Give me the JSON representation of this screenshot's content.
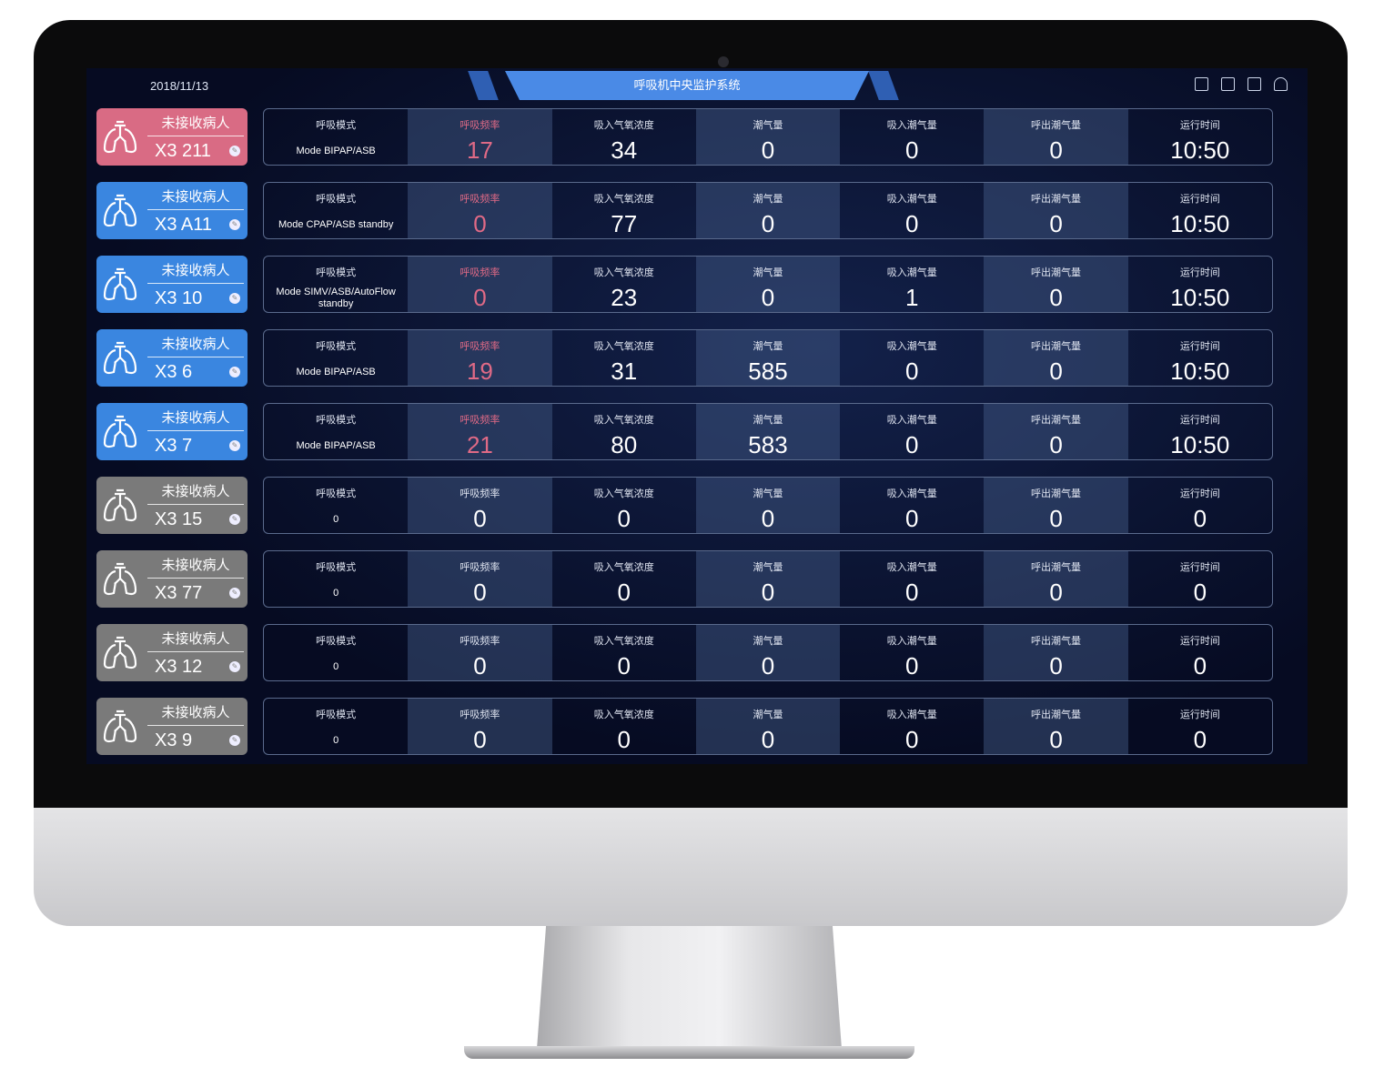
{
  "header": {
    "date": "2018/11/13",
    "title": "呼吸机中央监护系统",
    "icons": [
      "list-icon",
      "edit-icon",
      "layout-icon",
      "user-icon"
    ]
  },
  "colors": {
    "pink": "#d96b84",
    "blue": "#3a86e0",
    "gray": "#7a7a7a",
    "alert": "#e06a86"
  },
  "labels": [
    "呼吸模式",
    "呼吸频率",
    "吸入气氧浓度",
    "潮气量",
    "吸入潮气量",
    "呼出潮气量",
    "运行时间"
  ],
  "rows": [
    {
      "status": "未接收病人",
      "bed": "X3 211",
      "color": "pink",
      "alert": true,
      "mode": "Mode BIPAP/ASB",
      "values": [
        "17",
        "34",
        "0",
        "0",
        "0",
        "10:50"
      ]
    },
    {
      "status": "未接收病人",
      "bed": "X3 A11",
      "color": "blue",
      "alert": true,
      "mode": "Mode CPAP/ASB standby",
      "values": [
        "0",
        "77",
        "0",
        "0",
        "0",
        "10:50"
      ]
    },
    {
      "status": "未接收病人",
      "bed": "X3 10",
      "color": "blue",
      "alert": true,
      "mode": "Mode SIMV/ASB/AutoFlow standby",
      "values": [
        "0",
        "23",
        "0",
        "1",
        "0",
        "10:50"
      ]
    },
    {
      "status": "未接收病人",
      "bed": "X3 6",
      "color": "blue",
      "alert": true,
      "mode": "Mode BIPAP/ASB",
      "values": [
        "19",
        "31",
        "585",
        "0",
        "0",
        "10:50"
      ]
    },
    {
      "status": "未接收病人",
      "bed": "X3 7",
      "color": "blue",
      "alert": true,
      "mode": "Mode BIPAP/ASB",
      "values": [
        "21",
        "80",
        "583",
        "0",
        "0",
        "10:50"
      ]
    },
    {
      "status": "未接收病人",
      "bed": "X3 15",
      "color": "gray",
      "alert": false,
      "mode": "0",
      "values": [
        "0",
        "0",
        "0",
        "0",
        "0",
        "0"
      ]
    },
    {
      "status": "未接收病人",
      "bed": "X3 77",
      "color": "gray",
      "alert": false,
      "mode": "0",
      "values": [
        "0",
        "0",
        "0",
        "0",
        "0",
        "0"
      ]
    },
    {
      "status": "未接收病人",
      "bed": "X3 12",
      "color": "gray",
      "alert": false,
      "mode": "0",
      "values": [
        "0",
        "0",
        "0",
        "0",
        "0",
        "0"
      ]
    },
    {
      "status": "未接收病人",
      "bed": "X3 9",
      "color": "gray",
      "alert": false,
      "mode": "0",
      "values": [
        "0",
        "0",
        "0",
        "0",
        "0",
        "0"
      ]
    }
  ]
}
